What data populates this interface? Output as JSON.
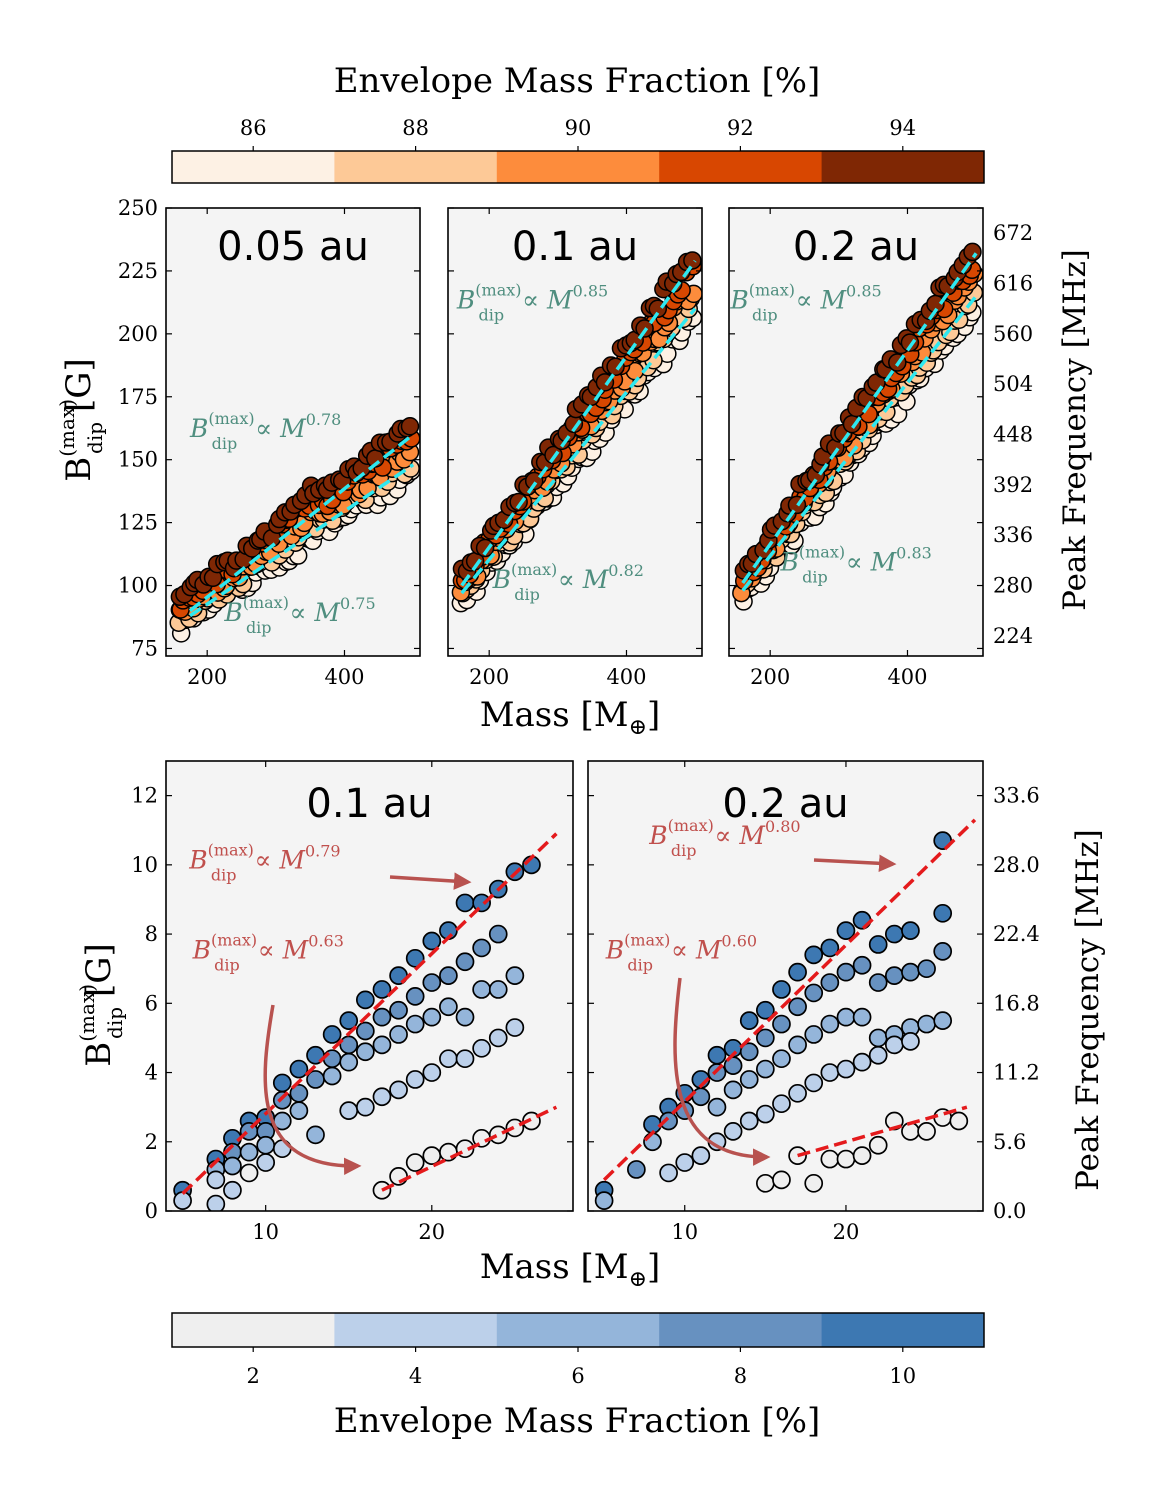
{
  "top_colorbar": {
    "label": "Envelope Mass Fraction [%]",
    "ticks": [
      86,
      88,
      90,
      92,
      94
    ],
    "range": [
      85,
      95
    ],
    "colors": [
      "#fdf1e4",
      "#fdc997",
      "#fd8c3c",
      "#d84701",
      "#7f2704"
    ]
  },
  "bottom_colorbar": {
    "label": "Envelope Mass Fraction [%]",
    "ticks": [
      2,
      4,
      6,
      8,
      10
    ],
    "range": [
      1,
      11
    ],
    "colors": [
      "#efefef",
      "#bcd0ea",
      "#94b5da",
      "#6791c0",
      "#3d78b2"
    ]
  },
  "top_axes": {
    "ylabel_main": "B",
    "ylabel_sup": "(max)",
    "ylabel_sub": "dip",
    "ylabel_unit": "[G]",
    "right_ylabel": "Peak Frequency [MHz]",
    "xlabel_main": "Mass [M",
    "xlabel_sub": "⊕",
    "xlabel_end": "]"
  },
  "bottom_axes": {
    "ylabel_main": "B",
    "ylabel_sup": "(max)",
    "ylabel_sub": "dip",
    "ylabel_unit": "[G]",
    "right_ylabel": "Peak Frequency [MHz]",
    "xlabel_main": "Mass [M",
    "xlabel_sub": "⊕",
    "xlabel_end": "]"
  },
  "fit_colors": {
    "top_fit": "#2ee8f0",
    "top_text": "#4f8e7f",
    "bottom_fit": "#e41a1c",
    "bottom_text": "#c0504d"
  },
  "chart_data": [
    {
      "type": "scatter",
      "title": "0.05 au",
      "xlim": [
        140,
        510
      ],
      "ylim": [
        72,
        250
      ],
      "xticks": [
        200,
        400
      ],
      "yticks": [
        75,
        100,
        125,
        150,
        175,
        200,
        225,
        250
      ],
      "right_ticks": [],
      "fits": [
        {
          "label": "∝ M",
          "exponent": "0.78",
          "x": [
            175,
            500
          ],
          "y": [
            90,
            160
          ]
        },
        {
          "label": "∝ M",
          "exponent": "0.75",
          "x": [
            175,
            500
          ],
          "y": [
            88,
            148
          ]
        }
      ],
      "annotations": [
        {
          "text_exp": "0.78",
          "ax": 175,
          "ay": 159
        },
        {
          "text_exp": "0.75",
          "ax": 225,
          "ay": 86
        }
      ]
    },
    {
      "type": "scatter",
      "title": "0.1 au",
      "xlim": [
        140,
        510
      ],
      "ylim": [
        72,
        250
      ],
      "xticks": [
        200,
        400
      ],
      "yticks": [],
      "right_ticks": [],
      "fits": [
        {
          "label": "∝ M",
          "exponent": "0.85",
          "x": [
            160,
            500
          ],
          "y": [
            100,
            229
          ]
        },
        {
          "label": "∝ M",
          "exponent": "0.82",
          "x": [
            160,
            500
          ],
          "y": [
            97,
            210
          ]
        }
      ],
      "annotations": [
        {
          "text_exp": "0.85",
          "ax": 153,
          "ay": 210
        },
        {
          "text_exp": "0.82",
          "ax": 205,
          "ay": 99
        }
      ]
    },
    {
      "type": "scatter",
      "title": "0.2 au",
      "xlim": [
        140,
        510
      ],
      "ylim": [
        72,
        250
      ],
      "xticks": [
        200,
        400
      ],
      "yticks": [],
      "right_ticks": [
        224,
        280,
        336,
        392,
        448,
        504,
        560,
        616,
        672
      ],
      "fits": [
        {
          "label": "∝ M",
          "exponent": "0.85",
          "x": [
            160,
            500
          ],
          "y": [
            101,
            232
          ]
        },
        {
          "label": "∝ M",
          "exponent": "0.83",
          "x": [
            160,
            500
          ],
          "y": [
            98,
            215
          ]
        }
      ],
      "annotations": [
        {
          "text_exp": "0.85",
          "ax": 142,
          "ay": 210
        },
        {
          "text_exp": "0.83",
          "ax": 215,
          "ay": 106
        }
      ]
    },
    {
      "type": "scatter",
      "title": "0.1 au",
      "xlim": [
        4,
        28.5
      ],
      "ylim": [
        0,
        13
      ],
      "xticks": [
        10,
        20
      ],
      "yticks": [
        0,
        2,
        4,
        6,
        8,
        10,
        12
      ],
      "right_ticks": [],
      "fits": [
        {
          "label": "∝ M",
          "exponent": "0.79",
          "x": [
            5,
            27.5
          ],
          "y": [
            0.5,
            10.9
          ]
        },
        {
          "label": "∝ M",
          "exponent": "0.63",
          "x": [
            17,
            27.5
          ],
          "y": [
            0.6,
            3.0
          ]
        }
      ],
      "annotations": [
        {
          "text_exp": "0.79",
          "ax": 5.4,
          "ay": 9.9
        },
        {
          "text_exp": "0.63",
          "ax": 5.6,
          "ay": 7.3
        }
      ],
      "points": [
        {
          "x": 5,
          "y": 0.6,
          "c": 10
        },
        {
          "x": 5,
          "y": 0.3,
          "c": 3
        },
        {
          "x": 7,
          "y": 1.5,
          "c": 9
        },
        {
          "x": 7,
          "y": 1.2,
          "c": 6
        },
        {
          "x": 7,
          "y": 0.9,
          "c": 4
        },
        {
          "x": 7,
          "y": 0.2,
          "c": 3
        },
        {
          "x": 8,
          "y": 2.1,
          "c": 9
        },
        {
          "x": 8,
          "y": 1.7,
          "c": 7
        },
        {
          "x": 8,
          "y": 1.3,
          "c": 5
        },
        {
          "x": 8,
          "y": 0.6,
          "c": 3
        },
        {
          "x": 9,
          "y": 2.6,
          "c": 9
        },
        {
          "x": 9,
          "y": 2.3,
          "c": 7
        },
        {
          "x": 9,
          "y": 1.7,
          "c": 5
        },
        {
          "x": 9,
          "y": 1.1,
          "c": 2
        },
        {
          "x": 10,
          "y": 2.7,
          "c": 9
        },
        {
          "x": 10,
          "y": 2.3,
          "c": 7
        },
        {
          "x": 10,
          "y": 1.9,
          "c": 5
        },
        {
          "x": 10,
          "y": 1.4,
          "c": 3
        },
        {
          "x": 11,
          "y": 3.7,
          "c": 9
        },
        {
          "x": 11,
          "y": 3.2,
          "c": 7
        },
        {
          "x": 11,
          "y": 2.6,
          "c": 5
        },
        {
          "x": 11,
          "y": 1.8,
          "c": 3
        },
        {
          "x": 12,
          "y": 4.1,
          "c": 9
        },
        {
          "x": 12,
          "y": 3.4,
          "c": 7
        },
        {
          "x": 12,
          "y": 2.9,
          "c": 5
        },
        {
          "x": 13,
          "y": 4.5,
          "c": 9
        },
        {
          "x": 13,
          "y": 3.8,
          "c": 7
        },
        {
          "x": 13,
          "y": 2.2,
          "c": 5
        },
        {
          "x": 14,
          "y": 5.1,
          "c": 9
        },
        {
          "x": 14,
          "y": 4.4,
          "c": 7
        },
        {
          "x": 14,
          "y": 3.9,
          "c": 5
        },
        {
          "x": 15,
          "y": 5.5,
          "c": 9
        },
        {
          "x": 15,
          "y": 4.8,
          "c": 7
        },
        {
          "x": 15,
          "y": 4.3,
          "c": 5
        },
        {
          "x": 15,
          "y": 2.9,
          "c": 3
        },
        {
          "x": 16,
          "y": 6.1,
          "c": 9
        },
        {
          "x": 16,
          "y": 5.2,
          "c": 7
        },
        {
          "x": 16,
          "y": 4.6,
          "c": 5
        },
        {
          "x": 16,
          "y": 3.0,
          "c": 3
        },
        {
          "x": 17,
          "y": 6.4,
          "c": 9
        },
        {
          "x": 17,
          "y": 5.6,
          "c": 7
        },
        {
          "x": 17,
          "y": 4.8,
          "c": 5
        },
        {
          "x": 17,
          "y": 3.3,
          "c": 3
        },
        {
          "x": 17,
          "y": 0.6,
          "c": 1
        },
        {
          "x": 18,
          "y": 6.8,
          "c": 9
        },
        {
          "x": 18,
          "y": 5.8,
          "c": 7
        },
        {
          "x": 18,
          "y": 5.1,
          "c": 5
        },
        {
          "x": 18,
          "y": 3.5,
          "c": 3
        },
        {
          "x": 18,
          "y": 1.0,
          "c": 1
        },
        {
          "x": 19,
          "y": 7.3,
          "c": 9
        },
        {
          "x": 19,
          "y": 6.2,
          "c": 7
        },
        {
          "x": 19,
          "y": 5.4,
          "c": 5
        },
        {
          "x": 19,
          "y": 3.8,
          "c": 3
        },
        {
          "x": 19,
          "y": 1.4,
          "c": 1
        },
        {
          "x": 20,
          "y": 7.8,
          "c": 9
        },
        {
          "x": 20,
          "y": 6.6,
          "c": 7
        },
        {
          "x": 20,
          "y": 5.6,
          "c": 5
        },
        {
          "x": 20,
          "y": 4.0,
          "c": 3
        },
        {
          "x": 20,
          "y": 1.6,
          "c": 1
        },
        {
          "x": 21,
          "y": 8.1,
          "c": 9
        },
        {
          "x": 21,
          "y": 6.8,
          "c": 7
        },
        {
          "x": 21,
          "y": 5.9,
          "c": 5
        },
        {
          "x": 21,
          "y": 4.4,
          "c": 3
        },
        {
          "x": 21,
          "y": 1.7,
          "c": 1
        },
        {
          "x": 22,
          "y": 8.9,
          "c": 9
        },
        {
          "x": 22,
          "y": 7.2,
          "c": 7
        },
        {
          "x": 22,
          "y": 5.6,
          "c": 5
        },
        {
          "x": 22,
          "y": 4.4,
          "c": 3
        },
        {
          "x": 22,
          "y": 1.8,
          "c": 1
        },
        {
          "x": 23,
          "y": 8.9,
          "c": 9
        },
        {
          "x": 23,
          "y": 7.6,
          "c": 7
        },
        {
          "x": 23,
          "y": 6.4,
          "c": 5
        },
        {
          "x": 23,
          "y": 4.7,
          "c": 3
        },
        {
          "x": 23,
          "y": 2.1,
          "c": 1
        },
        {
          "x": 24,
          "y": 9.3,
          "c": 9
        },
        {
          "x": 24,
          "y": 8.0,
          "c": 7
        },
        {
          "x": 24,
          "y": 6.4,
          "c": 5
        },
        {
          "x": 24,
          "y": 5.0,
          "c": 3
        },
        {
          "x": 24,
          "y": 2.2,
          "c": 1
        },
        {
          "x": 25,
          "y": 9.8,
          "c": 9
        },
        {
          "x": 25,
          "y": 6.8,
          "c": 5
        },
        {
          "x": 25,
          "y": 5.3,
          "c": 3
        },
        {
          "x": 25,
          "y": 2.4,
          "c": 1
        },
        {
          "x": 26,
          "y": 10.0,
          "c": 9
        },
        {
          "x": 26,
          "y": 2.6,
          "c": 1
        }
      ]
    },
    {
      "type": "scatter",
      "title": "0.2 au",
      "xlim": [
        4,
        28.5
      ],
      "ylim": [
        0,
        13
      ],
      "xticks": [
        10,
        20
      ],
      "yticks": [],
      "right_ticks": [
        0.0,
        5.6,
        11.2,
        16.8,
        22.4,
        28.0,
        33.6
      ],
      "fits": [
        {
          "label": "∝ M",
          "exponent": "0.80",
          "x": [
            5,
            28
          ],
          "y": [
            0.9,
            11.3
          ]
        },
        {
          "label": "∝ M",
          "exponent": "0.60",
          "x": [
            17,
            27.5
          ],
          "y": [
            1.6,
            3.0
          ]
        }
      ],
      "annotations": [
        {
          "text_exp": "0.80",
          "ax": 7.8,
          "ay": 10.6
        },
        {
          "text_exp": "0.60",
          "ax": 5.1,
          "ay": 7.3
        }
      ],
      "points": [
        {
          "x": 5,
          "y": 0.6,
          "c": 9
        },
        {
          "x": 5,
          "y": 0.3,
          "c": 6
        },
        {
          "x": 7,
          "y": 1.2,
          "c": 7
        },
        {
          "x": 8,
          "y": 2.5,
          "c": 9
        },
        {
          "x": 8,
          "y": 2.0,
          "c": 6
        },
        {
          "x": 9,
          "y": 3.0,
          "c": 9
        },
        {
          "x": 9,
          "y": 2.6,
          "c": 7
        },
        {
          "x": 9,
          "y": 1.1,
          "c": 3
        },
        {
          "x": 10,
          "y": 3.4,
          "c": 9
        },
        {
          "x": 10,
          "y": 2.9,
          "c": 7
        },
        {
          "x": 10,
          "y": 1.4,
          "c": 3
        },
        {
          "x": 11,
          "y": 3.8,
          "c": 9
        },
        {
          "x": 11,
          "y": 3.3,
          "c": 7
        },
        {
          "x": 11,
          "y": 1.6,
          "c": 3
        },
        {
          "x": 12,
          "y": 4.5,
          "c": 9
        },
        {
          "x": 12,
          "y": 4.0,
          "c": 7
        },
        {
          "x": 12,
          "y": 3.0,
          "c": 5
        },
        {
          "x": 12,
          "y": 2.0,
          "c": 3
        },
        {
          "x": 13,
          "y": 4.7,
          "c": 9
        },
        {
          "x": 13,
          "y": 4.2,
          "c": 7
        },
        {
          "x": 13,
          "y": 3.5,
          "c": 5
        },
        {
          "x": 13,
          "y": 2.3,
          "c": 3
        },
        {
          "x": 14,
          "y": 5.5,
          "c": 9
        },
        {
          "x": 14,
          "y": 4.6,
          "c": 7
        },
        {
          "x": 14,
          "y": 3.8,
          "c": 5
        },
        {
          "x": 14,
          "y": 2.6,
          "c": 3
        },
        {
          "x": 15,
          "y": 5.8,
          "c": 9
        },
        {
          "x": 15,
          "y": 5.0,
          "c": 7
        },
        {
          "x": 15,
          "y": 4.1,
          "c": 5
        },
        {
          "x": 15,
          "y": 2.8,
          "c": 3
        },
        {
          "x": 15,
          "y": 0.8,
          "c": 1
        },
        {
          "x": 16,
          "y": 6.4,
          "c": 9
        },
        {
          "x": 16,
          "y": 5.4,
          "c": 7
        },
        {
          "x": 16,
          "y": 4.4,
          "c": 5
        },
        {
          "x": 16,
          "y": 3.1,
          "c": 3
        },
        {
          "x": 16,
          "y": 0.9,
          "c": 1
        },
        {
          "x": 17,
          "y": 6.9,
          "c": 9
        },
        {
          "x": 17,
          "y": 5.9,
          "c": 7
        },
        {
          "x": 17,
          "y": 4.8,
          "c": 5
        },
        {
          "x": 17,
          "y": 3.4,
          "c": 3
        },
        {
          "x": 17,
          "y": 1.6,
          "c": 1
        },
        {
          "x": 18,
          "y": 7.4,
          "c": 9
        },
        {
          "x": 18,
          "y": 6.3,
          "c": 7
        },
        {
          "x": 18,
          "y": 5.1,
          "c": 5
        },
        {
          "x": 18,
          "y": 3.7,
          "c": 3
        },
        {
          "x": 18,
          "y": 0.8,
          "c": 1
        },
        {
          "x": 19,
          "y": 7.6,
          "c": 9
        },
        {
          "x": 19,
          "y": 6.6,
          "c": 7
        },
        {
          "x": 19,
          "y": 5.4,
          "c": 5
        },
        {
          "x": 19,
          "y": 4.0,
          "c": 3
        },
        {
          "x": 19,
          "y": 1.5,
          "c": 1
        },
        {
          "x": 20,
          "y": 8.1,
          "c": 9
        },
        {
          "x": 20,
          "y": 6.9,
          "c": 7
        },
        {
          "x": 20,
          "y": 5.6,
          "c": 5
        },
        {
          "x": 20,
          "y": 4.1,
          "c": 3
        },
        {
          "x": 20,
          "y": 1.5,
          "c": 1
        },
        {
          "x": 21,
          "y": 8.4,
          "c": 9
        },
        {
          "x": 21,
          "y": 7.1,
          "c": 7
        },
        {
          "x": 21,
          "y": 5.6,
          "c": 5
        },
        {
          "x": 21,
          "y": 4.3,
          "c": 3
        },
        {
          "x": 21,
          "y": 1.6,
          "c": 1
        },
        {
          "x": 22,
          "y": 7.7,
          "c": 9
        },
        {
          "x": 22,
          "y": 6.6,
          "c": 7
        },
        {
          "x": 22,
          "y": 5.0,
          "c": 5
        },
        {
          "x": 22,
          "y": 4.5,
          "c": 3
        },
        {
          "x": 22,
          "y": 1.9,
          "c": 1
        },
        {
          "x": 23,
          "y": 8.0,
          "c": 9
        },
        {
          "x": 23,
          "y": 6.8,
          "c": 7
        },
        {
          "x": 23,
          "y": 5.1,
          "c": 5
        },
        {
          "x": 23,
          "y": 4.8,
          "c": 3
        },
        {
          "x": 23,
          "y": 2.6,
          "c": 1
        },
        {
          "x": 24,
          "y": 8.1,
          "c": 9
        },
        {
          "x": 24,
          "y": 6.9,
          "c": 7
        },
        {
          "x": 24,
          "y": 5.3,
          "c": 5
        },
        {
          "x": 24,
          "y": 4.9,
          "c": 3
        },
        {
          "x": 24,
          "y": 2.3,
          "c": 1
        },
        {
          "x": 25,
          "y": 7.0,
          "c": 7
        },
        {
          "x": 25,
          "y": 5.4,
          "c": 5
        },
        {
          "x": 25,
          "y": 2.3,
          "c": 1
        },
        {
          "x": 26,
          "y": 10.7,
          "c": 9
        },
        {
          "x": 26,
          "y": 8.6,
          "c": 9
        },
        {
          "x": 26,
          "y": 7.5,
          "c": 7
        },
        {
          "x": 26,
          "y": 5.5,
          "c": 5
        },
        {
          "x": 26,
          "y": 2.7,
          "c": 1
        },
        {
          "x": 27,
          "y": 2.6,
          "c": 1
        }
      ]
    }
  ]
}
